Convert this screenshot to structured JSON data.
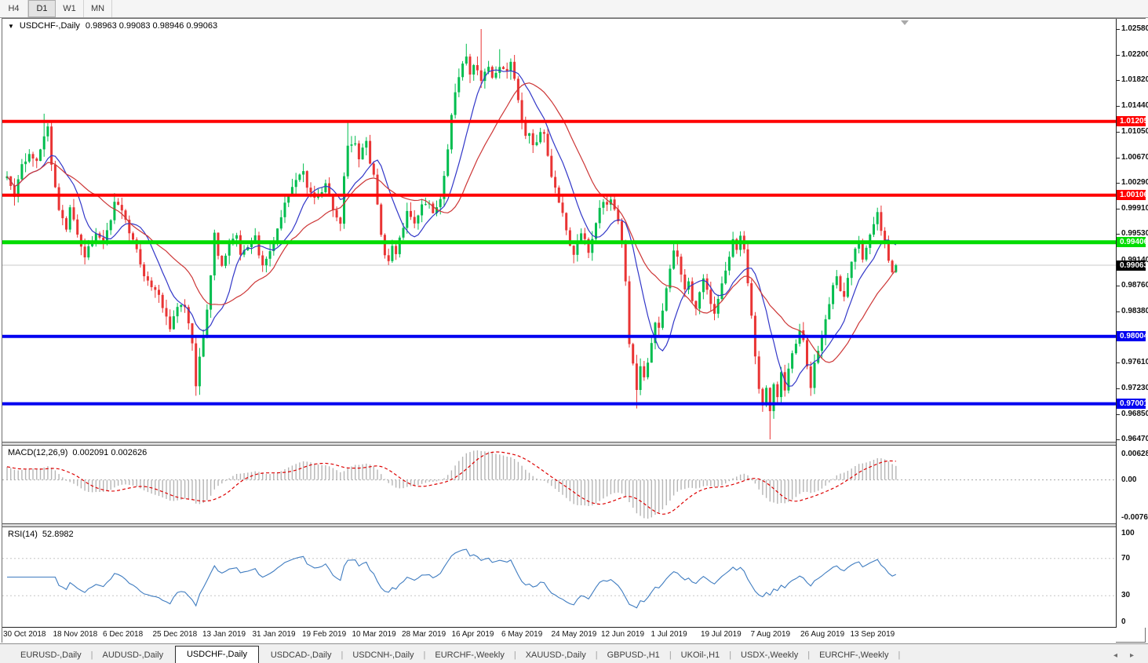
{
  "toolbar": {
    "timeframes": [
      "H4",
      "D1",
      "W1",
      "MN"
    ],
    "active": "D1"
  },
  "chart": {
    "title_symbol": "USDCHF-,Daily",
    "ohlc_text": "0.98963 0.99083 0.98946 0.99063"
  },
  "colors": {
    "bull": "#00bd4e",
    "bear": "#e93434",
    "ma_fast": "#3237c8",
    "ma_slow": "#cd3636",
    "sr_red": "#ff0000",
    "sr_green": "#00dc00",
    "sr_blue": "#0000f0",
    "price_line": "#c9c9c9",
    "price_tag_bg": "#000000",
    "macd_hist": "#b5b5b5",
    "macd_signal": "#dd0000",
    "rsi_line": "#3f7cc0",
    "level_dash": "#c6c6c6"
  },
  "chart_data": {
    "type": "candlestick",
    "symbol": "USDCHF",
    "period": "Daily",
    "bars_total": 241,
    "current_bar": {
      "open": 0.98963,
      "high": 0.99083,
      "low": 0.98946,
      "close": 0.99063
    },
    "current_price": {
      "value": 0.99063,
      "label": "0.99063"
    },
    "y_range": {
      "max": 1.02732,
      "min": 0.96435
    },
    "y_ticks": [
      "1.02580",
      "1.02200",
      "1.01820",
      "1.01440",
      "1.01050",
      "1.00670",
      "1.00290",
      "0.99910",
      "0.99530",
      "0.99140",
      "0.98760",
      "0.98380",
      "0.97610",
      "0.97230",
      "0.96850",
      "0.96470"
    ],
    "x_labels": [
      "30 Oct 2018",
      "18 Nov 2018",
      "6 Dec 2018",
      "25 Dec 2018",
      "13 Jan 2019",
      "31 Jan 2019",
      "19 Feb 2019",
      "10 Mar 2019",
      "28 Mar 2019",
      "16 Apr 2019",
      "6 May 2019",
      "24 May 2019",
      "12 Jun 2019",
      "1 Jul 2019",
      "19 Jul 2019",
      "7 Aug 2019",
      "26 Aug 2019",
      "13 Sep 2019"
    ],
    "hlines": [
      {
        "price": 1.01205,
        "label": "1.01205",
        "color": "sr_red",
        "width": 4
      },
      {
        "price": 1.00106,
        "label": "1.00106",
        "color": "sr_red",
        "width": 4
      },
      {
        "price": 0.99406,
        "label": "0.99406",
        "color": "sr_green",
        "width": 5
      },
      {
        "price": 0.98004,
        "label": "0.98004",
        "color": "sr_blue",
        "width": 4
      },
      {
        "price": 0.97001,
        "label": "0.97001",
        "color": "sr_blue",
        "width": 4
      }
    ],
    "close_keypoints": [
      [
        0,
        1.004
      ],
      [
        2,
        1.001
      ],
      [
        4,
        1.0055
      ],
      [
        6,
        1.007
      ],
      [
        8,
        1.006
      ],
      [
        10,
        1.0098
      ],
      [
        11,
        1.0112
      ],
      [
        12,
        1.0055
      ],
      [
        13,
        1.002
      ],
      [
        14,
        0.999
      ],
      [
        16,
        0.996
      ],
      [
        17,
        0.9995
      ],
      [
        19,
        0.995
      ],
      [
        21,
        0.992
      ],
      [
        22,
        0.9935
      ],
      [
        24,
        0.9955
      ],
      [
        26,
        0.994
      ],
      [
        28,
        0.9975
      ],
      [
        29,
        1.0
      ],
      [
        31,
        0.999
      ],
      [
        33,
        0.9955
      ],
      [
        35,
        0.993
      ],
      [
        37,
        0.989
      ],
      [
        39,
        0.9875
      ],
      [
        41,
        0.986
      ],
      [
        43,
        0.983
      ],
      [
        44,
        0.981
      ],
      [
        45,
        0.983
      ],
      [
        46,
        0.9845
      ],
      [
        48,
        0.9845
      ],
      [
        49,
        0.982
      ],
      [
        50,
        0.979
      ],
      [
        51,
        0.9725
      ],
      [
        52,
        0.977
      ],
      [
        53,
        0.98
      ],
      [
        54,
        0.984
      ],
      [
        55,
        0.989
      ],
      [
        56,
        0.9955
      ],
      [
        57,
        0.992
      ],
      [
        58,
        0.9905
      ],
      [
        60,
        0.994
      ],
      [
        62,
        0.995
      ],
      [
        63,
        0.992
      ],
      [
        65,
        0.9935
      ],
      [
        67,
        0.995
      ],
      [
        68,
        0.992
      ],
      [
        69,
        0.9905
      ],
      [
        71,
        0.9925
      ],
      [
        73,
        0.996
      ],
      [
        75,
        1.0
      ],
      [
        76,
        1.001
      ],
      [
        78,
        1.0035
      ],
      [
        80,
        1.0045
      ],
      [
        81,
        1.002
      ],
      [
        83,
        1.0005
      ],
      [
        85,
        1.0015
      ],
      [
        86,
        1.003
      ],
      [
        88,
        0.999
      ],
      [
        89,
        0.9975
      ],
      [
        90,
        0.997
      ],
      [
        91,
        1.004
      ],
      [
        92,
        1.0085
      ],
      [
        94,
        1.009
      ],
      [
        95,
        1.0065
      ],
      [
        96,
        1.008
      ],
      [
        97,
        1.009
      ],
      [
        98,
        1.006
      ],
      [
        99,
        1.004
      ],
      [
        100,
        0.9995
      ],
      [
        101,
        0.995
      ],
      [
        102,
        0.992
      ],
      [
        103,
        0.991
      ],
      [
        104,
        0.9935
      ],
      [
        105,
        0.9925
      ],
      [
        106,
        0.9945
      ],
      [
        107,
        0.996
      ],
      [
        108,
        0.9985
      ],
      [
        110,
        0.997
      ],
      [
        112,
        0.9995
      ],
      [
        114,
        1.0
      ],
      [
        115,
        0.9985
      ],
      [
        117,
        1.0005
      ],
      [
        118,
        1.004
      ],
      [
        119,
        1.008
      ],
      [
        120,
        1.013
      ],
      [
        121,
        1.0165
      ],
      [
        122,
        1.0185
      ],
      [
        123,
        1.0205
      ],
      [
        124,
        1.0215
      ],
      [
        125,
        1.019
      ],
      [
        126,
        1.0205
      ],
      [
        127,
        1.0195
      ],
      [
        128,
        1.018
      ],
      [
        129,
        1.0195
      ],
      [
        130,
        1.02
      ],
      [
        131,
        1.0185
      ],
      [
        132,
        1.0195
      ],
      [
        133,
        1.02
      ],
      [
        135,
        1.0195
      ],
      [
        136,
        1.021
      ],
      [
        137,
        1.0185
      ],
      [
        138,
        1.015
      ],
      [
        139,
        1.012
      ],
      [
        140,
        1.01
      ],
      [
        141,
        1.0105
      ],
      [
        142,
        1.0085
      ],
      [
        143,
        1.009
      ],
      [
        144,
        1.0105
      ],
      [
        145,
        1.01
      ],
      [
        146,
        1.007
      ],
      [
        147,
        1.004
      ],
      [
        148,
        1.002
      ],
      [
        149,
        1.0
      ],
      [
        150,
        0.9985
      ],
      [
        151,
        0.996
      ],
      [
        152,
        0.9935
      ],
      [
        153,
        0.992
      ],
      [
        154,
        0.994
      ],
      [
        155,
        0.9955
      ],
      [
        156,
        0.9945
      ],
      [
        157,
        0.9925
      ],
      [
        158,
        0.9945
      ],
      [
        159,
        0.997
      ],
      [
        160,
        0.999
      ],
      [
        161,
        1.0
      ],
      [
        162,
        0.9995
      ],
      [
        163,
        1.0005
      ],
      [
        164,
        0.999
      ],
      [
        165,
        0.997
      ],
      [
        166,
        0.994
      ],
      [
        167,
        0.988
      ],
      [
        168,
        0.979
      ],
      [
        169,
        0.976
      ],
      [
        170,
        0.972
      ],
      [
        171,
        0.9755
      ],
      [
        172,
        0.974
      ],
      [
        173,
        0.976
      ],
      [
        174,
        0.979
      ],
      [
        175,
        0.982
      ],
      [
        176,
        0.9815
      ],
      [
        177,
        0.984
      ],
      [
        178,
        0.987
      ],
      [
        179,
        0.99
      ],
      [
        180,
        0.993
      ],
      [
        181,
        0.992
      ],
      [
        182,
        0.989
      ],
      [
        183,
        0.987
      ],
      [
        184,
        0.988
      ],
      [
        185,
        0.9855
      ],
      [
        186,
        0.984
      ],
      [
        187,
        0.9865
      ],
      [
        188,
        0.9885
      ],
      [
        189,
        0.987
      ],
      [
        190,
        0.985
      ],
      [
        191,
        0.9835
      ],
      [
        192,
        0.9855
      ],
      [
        193,
        0.988
      ],
      [
        194,
        0.99
      ],
      [
        195,
        0.992
      ],
      [
        196,
        0.9945
      ],
      [
        197,
        0.993
      ],
      [
        198,
        0.995
      ],
      [
        199,
        0.993
      ],
      [
        200,
        0.988
      ],
      [
        201,
        0.983
      ],
      [
        202,
        0.977
      ],
      [
        203,
        0.972
      ],
      [
        204,
        0.97
      ],
      [
        205,
        0.9725
      ],
      [
        206,
        0.969
      ],
      [
        207,
        0.973
      ],
      [
        208,
        0.971
      ],
      [
        209,
        0.9745
      ],
      [
        210,
        0.972
      ],
      [
        211,
        0.975
      ],
      [
        212,
        0.9775
      ],
      [
        213,
        0.979
      ],
      [
        214,
        0.981
      ],
      [
        215,
        0.9795
      ],
      [
        216,
        0.9755
      ],
      [
        217,
        0.9725
      ],
      [
        218,
        0.976
      ],
      [
        219,
        0.978
      ],
      [
        220,
        0.98
      ],
      [
        221,
        0.9825
      ],
      [
        222,
        0.985
      ],
      [
        223,
        0.9875
      ],
      [
        224,
        0.989
      ],
      [
        225,
        0.987
      ],
      [
        226,
        0.986
      ],
      [
        227,
        0.9885
      ],
      [
        228,
        0.991
      ],
      [
        229,
        0.993
      ],
      [
        230,
        0.994
      ],
      [
        231,
        0.9915
      ],
      [
        232,
        0.993
      ],
      [
        233,
        0.995
      ],
      [
        234,
        0.997
      ],
      [
        235,
        0.9985
      ],
      [
        236,
        0.996
      ],
      [
        237,
        0.994
      ],
      [
        238,
        0.9915
      ],
      [
        239,
        0.9896
      ],
      [
        240,
        0.9906
      ]
    ],
    "spikes": {
      "10": {
        "h": 1.0132
      },
      "51": {
        "l": 0.9712
      },
      "92": {
        "h": 1.0121
      },
      "124": {
        "h": 1.0236
      },
      "128": {
        "h": 1.0258
      },
      "133": {
        "h": 1.0228
      },
      "170": {
        "l": 0.9693
      },
      "206": {
        "l": 0.9647
      },
      "217": {
        "l": 0.9712
      },
      "235": {
        "h": 0.9992
      }
    },
    "moving_averages": [
      {
        "name": "fast",
        "period": 10
      },
      {
        "name": "slow",
        "period": 22
      }
    ]
  },
  "macd_panel": {
    "label": "MACD(12,26,9)",
    "values_text": "0.002091 0.002626",
    "axis_top": "0.006286",
    "axis_zero": "0.00",
    "axis_bottom": "-0.00762",
    "fast": 12,
    "slow": 26,
    "signal": 9
  },
  "rsi_panel": {
    "label": "RSI(14)",
    "value_text": "52.8982",
    "axis": [
      "100",
      "70",
      "30",
      "0"
    ],
    "levels": [
      70,
      30
    ],
    "period": 14
  },
  "tabs": {
    "items": [
      "EURUSD-,Daily",
      "AUDUSD-,Daily",
      "USDCHF-,Daily",
      "USDCAD-,Daily",
      "USDCNH-,Daily",
      "EURCHF-,Weekly",
      "XAUUSD-,Daily",
      "GBPUSD-,H1",
      "UKOil-,H1",
      "USDX-,Weekly",
      "EURCHF-,Weekly"
    ],
    "active_index": 2,
    "nav_prev": "◂",
    "nav_next": "▸"
  }
}
